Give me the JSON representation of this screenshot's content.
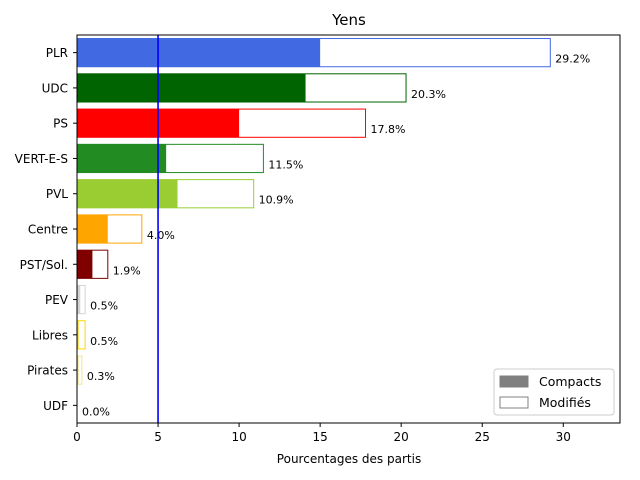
{
  "chart_data": {
    "type": "bar",
    "orientation": "horizontal",
    "title": "Yens",
    "xlabel": "Pourcentages des partis",
    "ylabel": "",
    "xlim": [
      0,
      33.5
    ],
    "xticks": [
      "0",
      "5",
      "10",
      "15",
      "20",
      "25",
      "30"
    ],
    "xtick_values": [
      0,
      5,
      10,
      15,
      20,
      25,
      30
    ],
    "threshold_line": {
      "value": 5,
      "color": "#0000ff"
    },
    "categories": [
      "PLR",
      "UDC",
      "PS",
      "VERT-E-S",
      "PVL",
      "Centre",
      "PST/Sol.",
      "PEV",
      "Libres",
      "Pirates",
      "UDF"
    ],
    "series": [
      {
        "name": "Compacts",
        "values": [
          15.0,
          14.1,
          10.0,
          5.5,
          6.2,
          1.9,
          0.95,
          0.2,
          0.1,
          0.1,
          0.0
        ]
      },
      {
        "name": "Modifiés",
        "values": [
          29.2,
          20.3,
          17.8,
          11.5,
          10.9,
          4.0,
          1.9,
          0.5,
          0.5,
          0.3,
          0.0
        ]
      }
    ],
    "totals_labels": [
      "29.2%",
      "20.3%",
      "17.8%",
      "11.5%",
      "10.9%",
      "4.0%",
      "1.9%",
      "0.5%",
      "0.5%",
      "0.3%",
      "0.0%"
    ],
    "colors": [
      "#4169e1",
      "#006400",
      "#ff0000",
      "#228b22",
      "#9acd32",
      "#ffa500",
      "#800000",
      "#d3d3d3",
      "#ffd700",
      "#f0e68c",
      "#c0c0c0"
    ],
    "legend": {
      "placement": "lower-right",
      "entries": [
        {
          "label": "Compacts",
          "style": "filled",
          "color": "#808080"
        },
        {
          "label": "Modifiés",
          "style": "outline",
          "color": "#808080"
        }
      ]
    },
    "grid": false
  }
}
